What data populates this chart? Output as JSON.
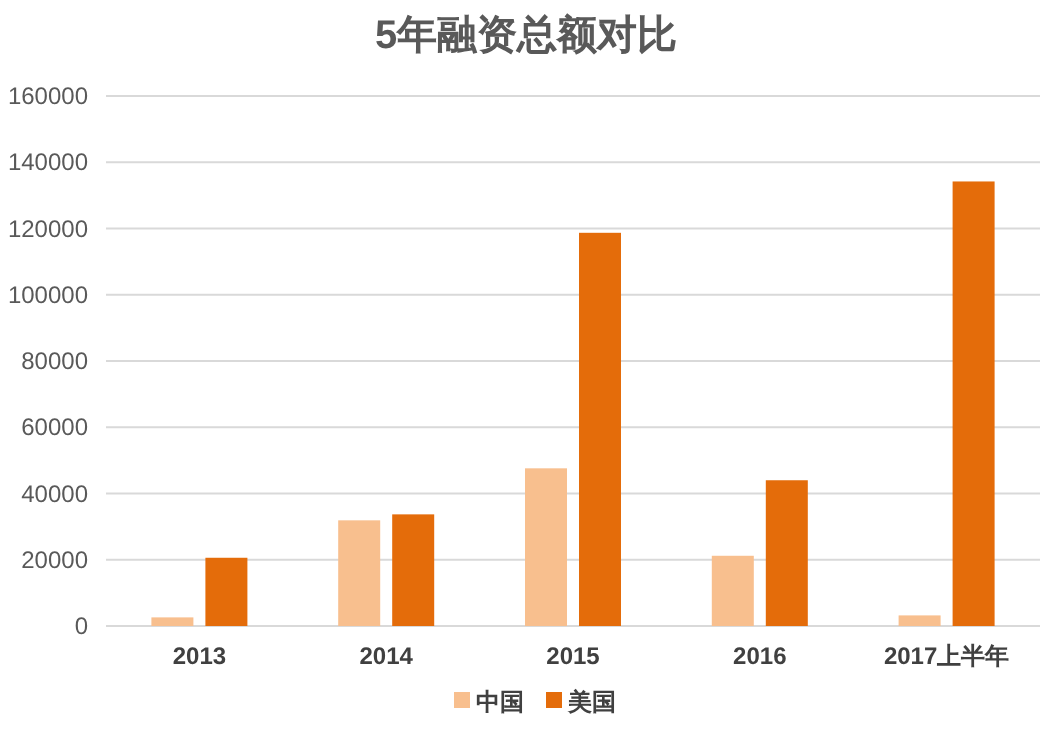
{
  "chart_data": {
    "type": "bar",
    "title": "5年融资总额对比",
    "categories": [
      "2013",
      "2014",
      "2015",
      "2016",
      "2017上半年"
    ],
    "series": [
      {
        "name": "中国",
        "color": "#f8bf8e",
        "values": [
          2600,
          31900,
          47600,
          21200,
          3200
        ]
      },
      {
        "name": "美国",
        "color": "#e46c0a",
        "values": [
          20600,
          33700,
          118700,
          44000,
          134200
        ]
      }
    ],
    "ylim": [
      0,
      160000
    ],
    "yticks": [
      0,
      20000,
      40000,
      60000,
      80000,
      100000,
      120000,
      140000,
      160000
    ],
    "grid": "y",
    "legend": "bottom"
  }
}
